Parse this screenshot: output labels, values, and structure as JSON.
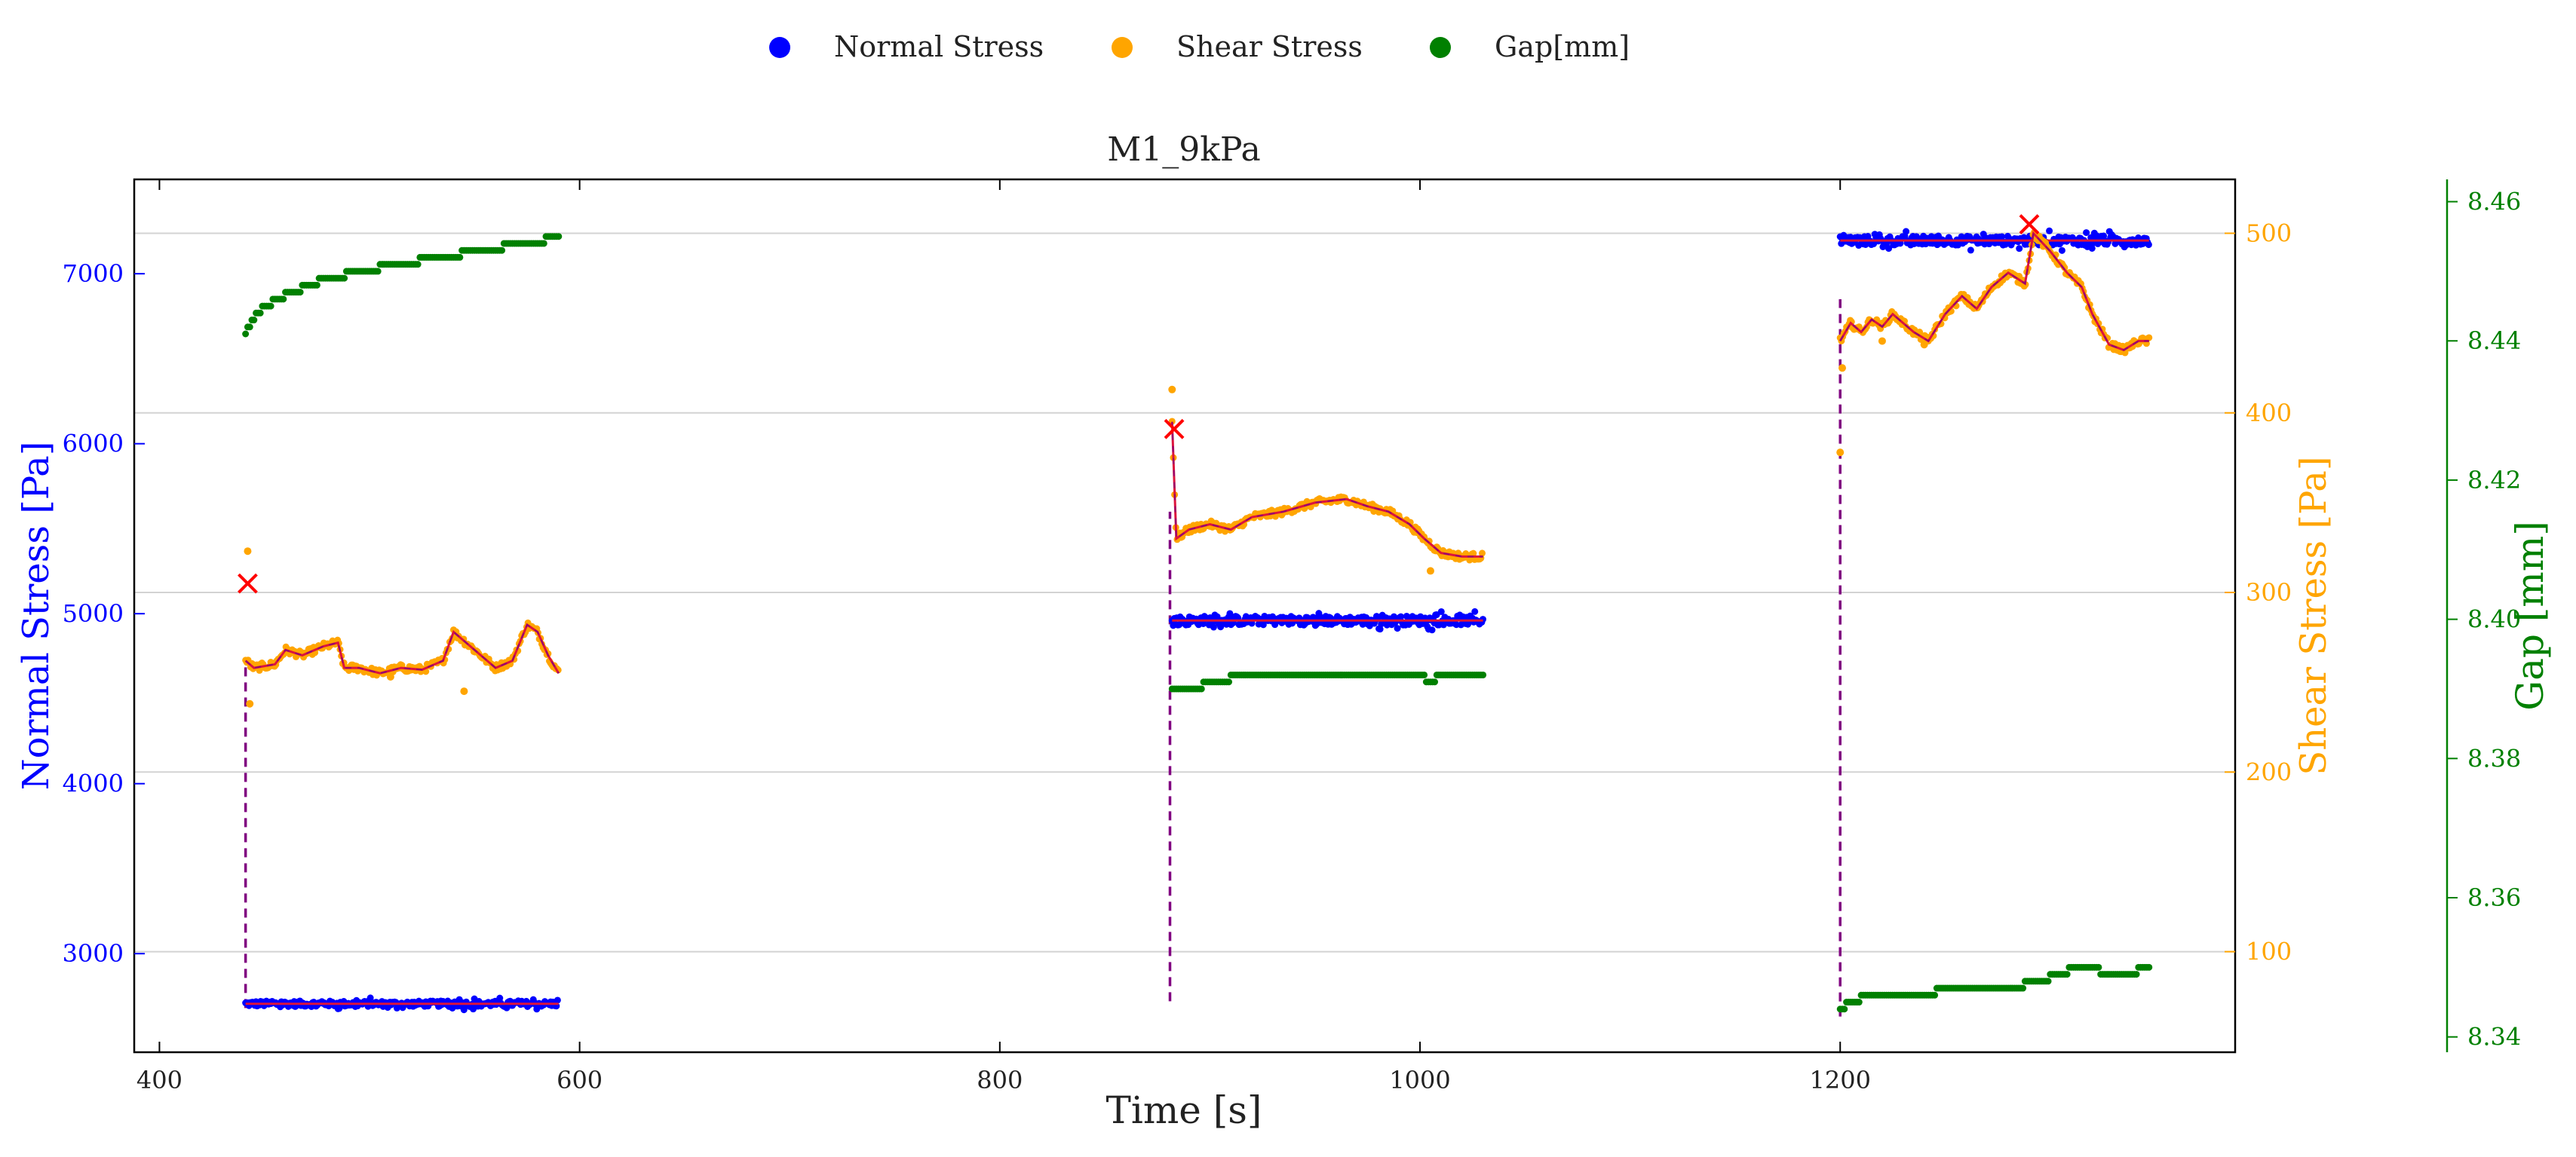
{
  "chart_data": {
    "type": "scatter",
    "title": "M1_9kPa",
    "xlabel": "Time [s]",
    "ylabel": "Normal Stress [Pa]",
    "y2label": "Shear Stress [Pa]",
    "y3label": "Gap [mm]",
    "xlim": [
      388,
      1388
    ],
    "ylim": [
      2420,
      7555
    ],
    "y2lim": [
      44,
      530
    ],
    "y3lim": [
      8.3378,
      8.4632
    ],
    "xticks": [
      400,
      600,
      800,
      1000,
      1200
    ],
    "yticks": [
      3000,
      4000,
      5000,
      6000,
      7000
    ],
    "y2ticks": [
      100,
      200,
      300,
      400,
      500
    ],
    "y3ticks": [
      8.34,
      8.36,
      8.38,
      8.4,
      8.42,
      8.44,
      8.46
    ],
    "y3ticklabels": [
      "8.34",
      "8.36",
      "8.38",
      "8.40",
      "8.42",
      "8.44",
      "8.46"
    ],
    "grid": "horizontal",
    "legend": {
      "position": "top-center",
      "entries": [
        {
          "label": "Normal Stress",
          "color": "#0000ff"
        },
        {
          "label": "Shear Stress",
          "color": "#ffa500"
        },
        {
          "label": "Gap[mm]",
          "color": "#008000"
        }
      ]
    },
    "colors": {
      "normal": "#0000ff",
      "shear": "#ffa500",
      "gap": "#008000",
      "fit": "#dc143c",
      "dashed": "#800080",
      "marker": "#ff0000"
    },
    "segments": [
      {
        "t_start": 441,
        "t_end": 590,
        "normal_stress": {
          "mean": 2705,
          "spread": 28
        },
        "shear_stress": [
          [
            441,
            262
          ],
          [
            445,
            258
          ],
          [
            455,
            260
          ],
          [
            460,
            268
          ],
          [
            468,
            265
          ],
          [
            478,
            270
          ],
          [
            485,
            272
          ],
          [
            488,
            258
          ],
          [
            495,
            258
          ],
          [
            505,
            255
          ],
          [
            515,
            258
          ],
          [
            525,
            257
          ],
          [
            535,
            262
          ],
          [
            540,
            278
          ],
          [
            550,
            268
          ],
          [
            560,
            258
          ],
          [
            568,
            262
          ],
          [
            575,
            282
          ],
          [
            580,
            278
          ],
          [
            585,
            265
          ],
          [
            590,
            255
          ]
        ],
        "shear_outliers": [
          [
            442,
            323
          ],
          [
            443,
            238
          ],
          [
            545,
            245
          ],
          [
            510,
            253
          ]
        ],
        "gap": [
          [
            441,
            8.4412
          ],
          [
            444,
            8.4428
          ],
          [
            448,
            8.4444
          ],
          [
            455,
            8.4458
          ],
          [
            465,
            8.4472
          ],
          [
            475,
            8.4485
          ],
          [
            490,
            8.4496
          ],
          [
            510,
            8.4508
          ],
          [
            530,
            8.4518
          ],
          [
            550,
            8.4528
          ],
          [
            570,
            8.4538
          ],
          [
            590,
            8.4548
          ]
        ],
        "dashed_line": {
          "t": 441,
          "from": 2680,
          "to": 4700
        },
        "peak_marker": {
          "t": 442,
          "shear": 305
        }
      },
      {
        "t_start": 882,
        "t_end": 1030,
        "normal_stress": {
          "mean": 4960,
          "spread": 45
        },
        "shear_stress": [
          [
            882,
            395
          ],
          [
            884,
            330
          ],
          [
            890,
            335
          ],
          [
            900,
            338
          ],
          [
            910,
            335
          ],
          [
            920,
            342
          ],
          [
            935,
            345
          ],
          [
            950,
            350
          ],
          [
            965,
            352
          ],
          [
            975,
            348
          ],
          [
            985,
            345
          ],
          [
            995,
            338
          ],
          [
            1002,
            330
          ],
          [
            1010,
            322
          ],
          [
            1020,
            320
          ],
          [
            1030,
            320
          ]
        ],
        "shear_outliers": [
          [
            882,
            413
          ],
          [
            1005,
            312
          ]
        ],
        "gap": [
          [
            882,
            8.3895
          ],
          [
            890,
            8.39
          ],
          [
            900,
            8.3908
          ],
          [
            910,
            8.3915
          ],
          [
            950,
            8.3915
          ],
          [
            990,
            8.3915
          ],
          [
            1000,
            8.392
          ],
          [
            1005,
            8.391
          ],
          [
            1010,
            8.392
          ],
          [
            1030,
            8.392
          ]
        ],
        "dashed_line": {
          "t": 881,
          "from": 2720,
          "to": 5600
        },
        "peak_marker": {
          "t": 883,
          "shear": 391
        }
      },
      {
        "t_start": 1200,
        "t_end": 1347,
        "normal_stress": {
          "mean": 7195,
          "spread": 45
        },
        "shear_stress": [
          [
            1200,
            440
          ],
          [
            1205,
            450
          ],
          [
            1210,
            445
          ],
          [
            1215,
            452
          ],
          [
            1220,
            448
          ],
          [
            1225,
            455
          ],
          [
            1235,
            445
          ],
          [
            1242,
            440
          ],
          [
            1250,
            455
          ],
          [
            1258,
            465
          ],
          [
            1265,
            458
          ],
          [
            1272,
            470
          ],
          [
            1280,
            478
          ],
          [
            1288,
            472
          ],
          [
            1292,
            500
          ],
          [
            1300,
            490
          ],
          [
            1308,
            478
          ],
          [
            1315,
            470
          ],
          [
            1320,
            455
          ],
          [
            1328,
            438
          ],
          [
            1335,
            435
          ],
          [
            1342,
            440
          ],
          [
            1347,
            440
          ]
        ],
        "shear_outliers": [
          [
            1201,
            425
          ],
          [
            1200,
            378
          ],
          [
            1220,
            440
          ],
          [
            1240,
            438
          ]
        ],
        "gap": [
          [
            1200,
            8.344
          ],
          [
            1205,
            8.345
          ],
          [
            1215,
            8.346
          ],
          [
            1240,
            8.346
          ],
          [
            1250,
            8.347
          ],
          [
            1280,
            8.347
          ],
          [
            1295,
            8.348
          ],
          [
            1305,
            8.349
          ],
          [
            1312,
            8.35
          ],
          [
            1347,
            8.35
          ],
          [
            1335,
            8.349
          ]
        ],
        "dashed_line": {
          "t": 1200,
          "from": 2630,
          "to": 6850
        },
        "peak_marker": {
          "t": 1290,
          "shear": 505
        }
      }
    ]
  }
}
